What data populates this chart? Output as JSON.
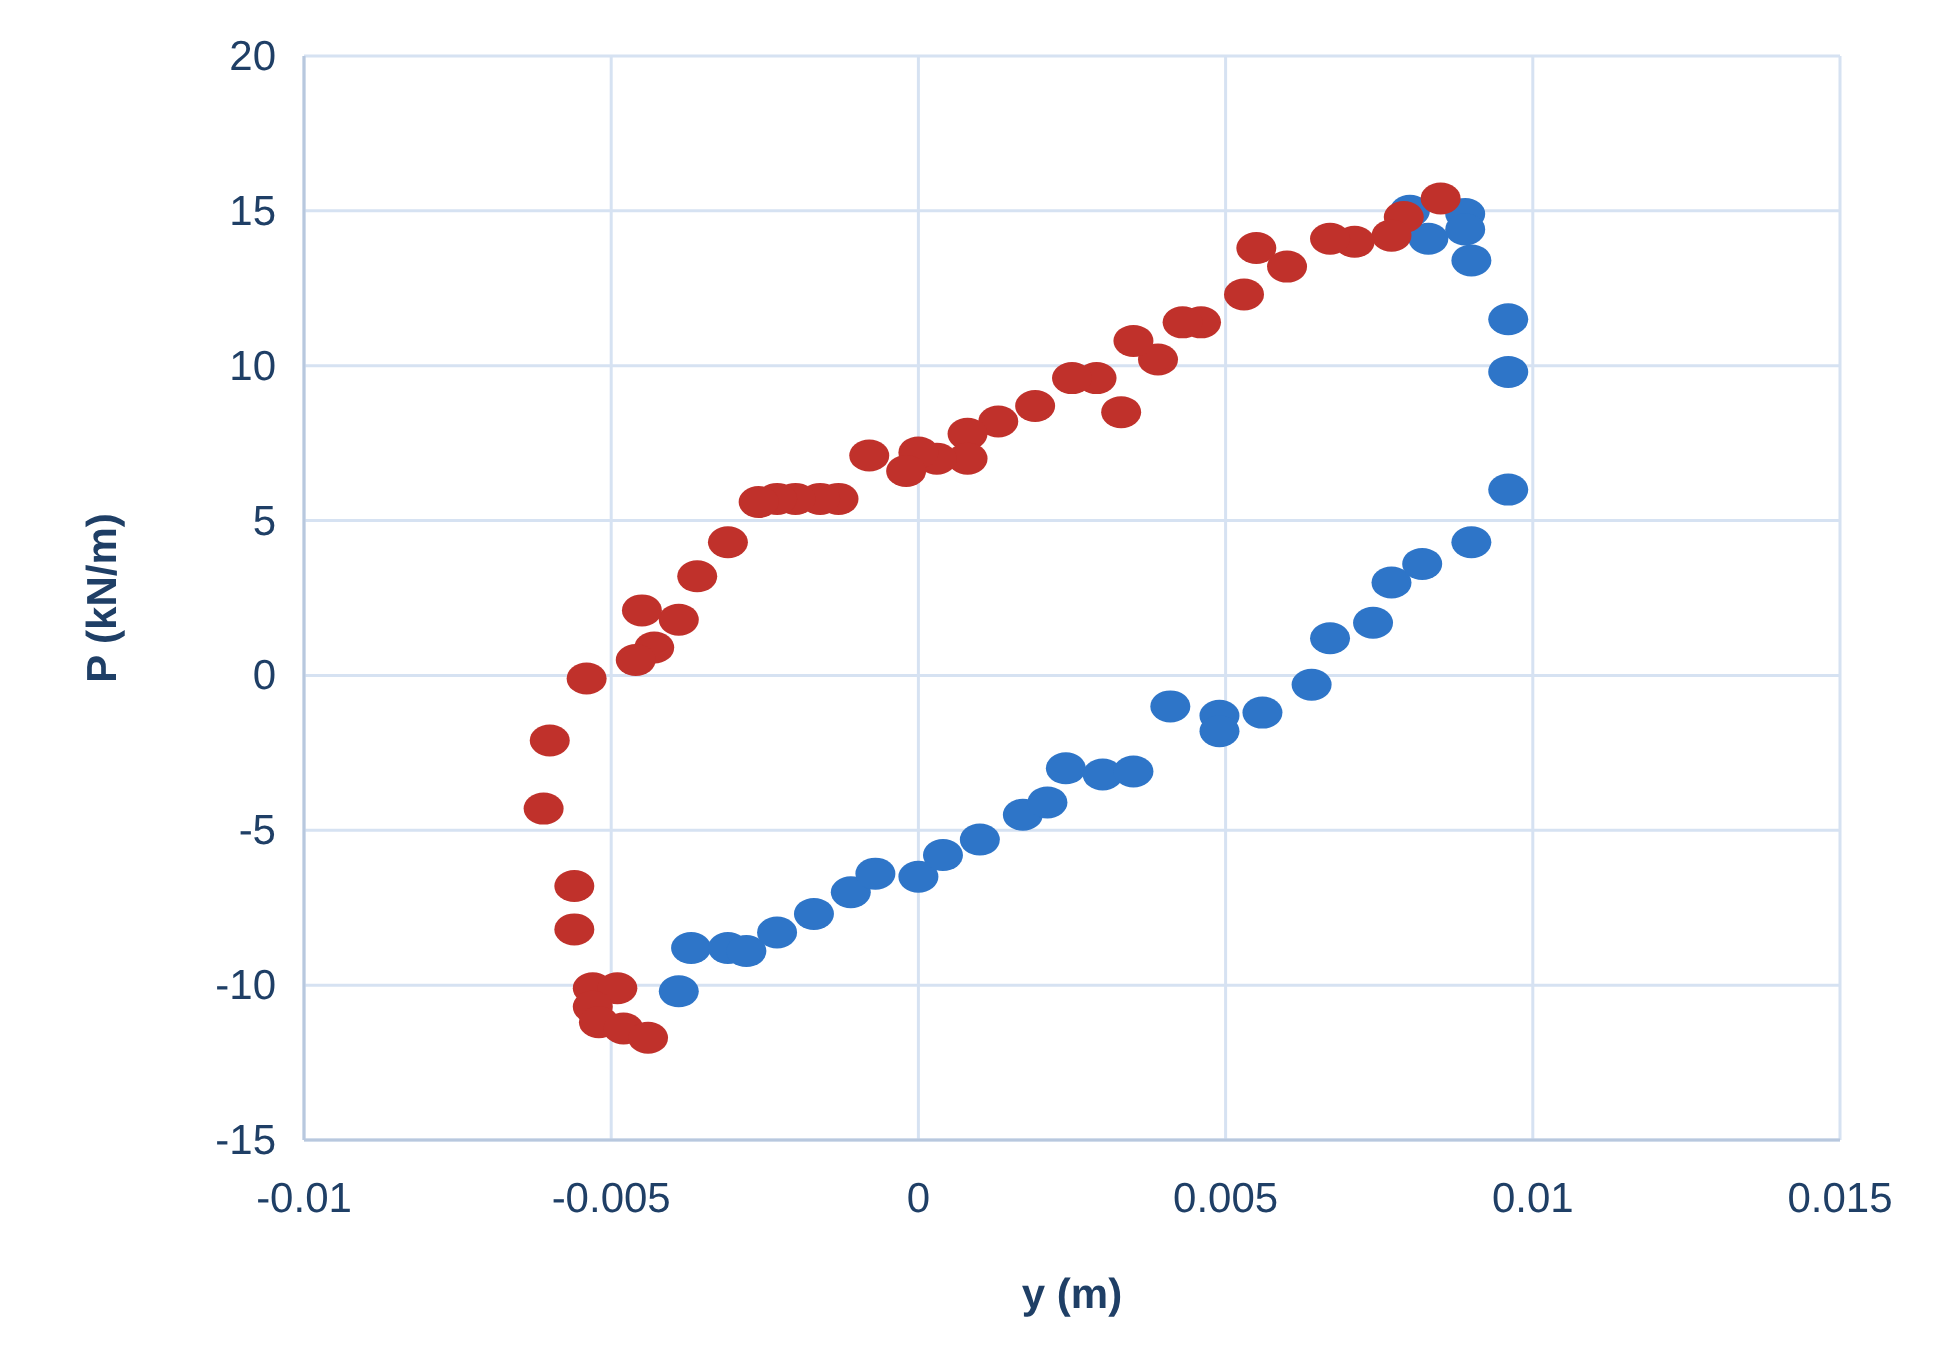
{
  "chart_data": {
    "type": "scatter",
    "xlabel": "y (m)",
    "ylabel": "P (kN/m)",
    "xlim": [
      -0.01,
      0.015
    ],
    "xticks": [
      -0.01,
      -0.005,
      0,
      0.005,
      0.01,
      0.015
    ],
    "ylim": [
      -15,
      20
    ],
    "yticks": [
      -15,
      -10,
      -5,
      0,
      5,
      10,
      15,
      20
    ],
    "grid": true,
    "marker": "circle",
    "series": [
      {
        "color": "#2e75c8",
        "x": [
          -0.0039,
          -0.0037,
          -0.0031,
          -0.0028,
          -0.0023,
          -0.0017,
          -0.0011,
          -0.0007,
          0.0,
          0.0004,
          0.001,
          0.0017,
          0.0021,
          0.0024,
          0.003,
          0.0035,
          0.0041,
          0.0049,
          0.0049,
          0.0056,
          0.0064,
          0.0067,
          0.0074,
          0.0077,
          0.0082,
          0.009,
          0.0096,
          0.0096,
          0.0096,
          0.009,
          0.0089,
          0.0083,
          0.008,
          0.0089
        ],
        "values": [
          -10.2,
          -8.8,
          -8.8,
          -8.9,
          -8.3,
          -7.7,
          -7.0,
          -6.4,
          -6.5,
          -5.8,
          -5.3,
          -4.5,
          -4.1,
          -3.0,
          -3.2,
          -3.1,
          -1.0,
          -1.3,
          -1.8,
          -1.2,
          -0.3,
          1.2,
          1.7,
          3.0,
          3.6,
          4.3,
          6.0,
          9.8,
          11.5,
          13.4,
          14.9,
          14.1,
          15.0,
          14.4
        ]
      },
      {
        "color": "#c0312b",
        "x": [
          0.0085,
          0.0079,
          0.0077,
          0.0071,
          0.0067,
          0.006,
          0.0055,
          0.0053,
          0.0046,
          0.0043,
          0.0039,
          0.0035,
          0.0033,
          0.0029,
          0.0025,
          0.0019,
          0.0013,
          0.0008,
          0.0008,
          0.0003,
          0.0,
          -0.0002,
          -0.0008,
          -0.0013,
          -0.0016,
          -0.002,
          -0.0023,
          -0.0026,
          -0.0031,
          -0.0036,
          -0.0039,
          -0.0043,
          -0.0046,
          -0.0045,
          -0.0054,
          -0.006,
          -0.0061,
          -0.0056,
          -0.0056,
          -0.0053,
          -0.0049,
          -0.0053,
          -0.0052,
          -0.0048,
          -0.0044
        ],
        "values": [
          15.4,
          14.8,
          14.2,
          14.0,
          14.1,
          13.2,
          13.8,
          12.3,
          11.4,
          11.4,
          10.2,
          10.8,
          8.5,
          9.6,
          9.6,
          8.7,
          8.2,
          7.8,
          7.0,
          7.0,
          7.2,
          6.6,
          7.1,
          5.7,
          5.7,
          5.7,
          5.7,
          5.6,
          4.3,
          3.2,
          1.8,
          0.9,
          0.5,
          2.1,
          -0.1,
          -2.1,
          -4.3,
          -6.8,
          -8.2,
          -10.1,
          -10.1,
          -10.7,
          -11.2,
          -11.4,
          -11.7
        ]
      }
    ]
  }
}
